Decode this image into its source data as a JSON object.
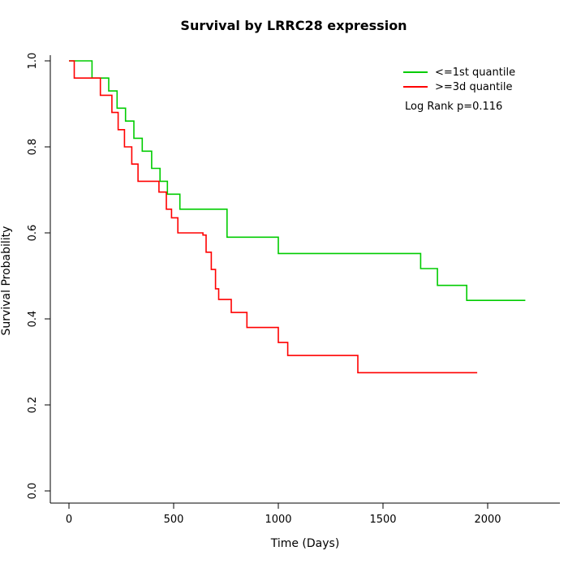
{
  "chart_data": {
    "type": "line",
    "subtype": "kaplan-meier-step",
    "title": "Survival by LRRC28 expression",
    "xlabel": "Time (Days)",
    "ylabel": "Survival Probability",
    "xlim": [
      0,
      2200
    ],
    "ylim": [
      0,
      1
    ],
    "x_ticks": [
      0,
      500,
      1000,
      1500,
      2000
    ],
    "y_ticks": [
      0.0,
      0.2,
      0.4,
      0.6,
      0.8,
      1.0
    ],
    "grid": false,
    "legend_position": "top-right",
    "annotation": "Log Rank p=0.116",
    "series": [
      {
        "name": "<=1st quantile",
        "color": "#00CC00",
        "points": [
          [
            0,
            1.0
          ],
          [
            110,
            0.96
          ],
          [
            190,
            0.93
          ],
          [
            230,
            0.89
          ],
          [
            270,
            0.86
          ],
          [
            310,
            0.82
          ],
          [
            350,
            0.79
          ],
          [
            395,
            0.75
          ],
          [
            435,
            0.72
          ],
          [
            470,
            0.69
          ],
          [
            530,
            0.655
          ],
          [
            755,
            0.59
          ],
          [
            1000,
            0.552
          ],
          [
            1680,
            0.517
          ],
          [
            1760,
            0.478
          ],
          [
            1900,
            0.443
          ],
          [
            2180,
            0.443
          ]
        ]
      },
      {
        "name": ">=3d quantile",
        "color": "#FF0000",
        "points": [
          [
            0,
            1.0
          ],
          [
            25,
            0.96
          ],
          [
            150,
            0.92
          ],
          [
            205,
            0.88
          ],
          [
            235,
            0.84
          ],
          [
            265,
            0.8
          ],
          [
            300,
            0.76
          ],
          [
            330,
            0.72
          ],
          [
            430,
            0.695
          ],
          [
            465,
            0.655
          ],
          [
            490,
            0.635
          ],
          [
            520,
            0.6
          ],
          [
            640,
            0.595
          ],
          [
            655,
            0.555
          ],
          [
            680,
            0.515
          ],
          [
            700,
            0.47
          ],
          [
            715,
            0.445
          ],
          [
            775,
            0.415
          ],
          [
            850,
            0.38
          ],
          [
            1000,
            0.345
          ],
          [
            1045,
            0.315
          ],
          [
            1380,
            0.275
          ],
          [
            1950,
            0.275
          ]
        ]
      }
    ]
  }
}
